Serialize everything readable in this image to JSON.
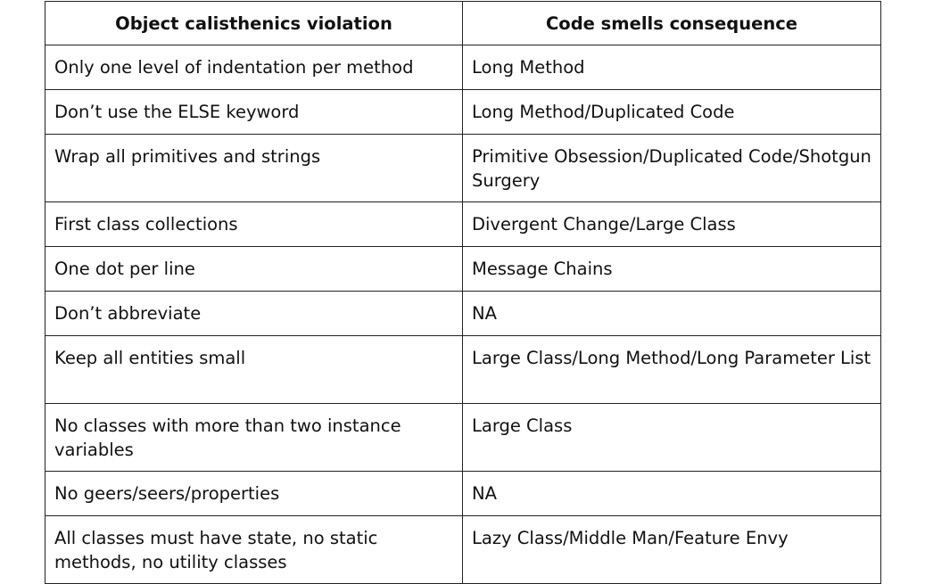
{
  "table": {
    "headers": [
      "Object calisthenics violation",
      "Code smells consequence"
    ],
    "rows": [
      [
        "Only one level of indentation per method",
        "Long Method"
      ],
      [
        "Don’t use the ELSE keyword",
        "Long Method/Duplicated Code"
      ],
      [
        "Wrap all primitives and strings",
        "Primitive Obsession/Duplicated Code/Shotgun Surgery"
      ],
      [
        "First class collections",
        "Divergent Change/Large Class"
      ],
      [
        "One dot per line",
        "Message Chains"
      ],
      [
        "Don’t abbreviate",
        "NA"
      ],
      [
        "Keep all entities small",
        "Large Class/Long Method/Long Parameter List"
      ],
      [
        "No classes with more than two instance variables",
        "Large Class"
      ],
      [
        "No geers/seers/properties",
        "NA"
      ],
      [
        "All classes must have state, no static methods, no utility classes",
        "Lazy Class/Middle Man/Feature Envy"
      ]
    ]
  }
}
